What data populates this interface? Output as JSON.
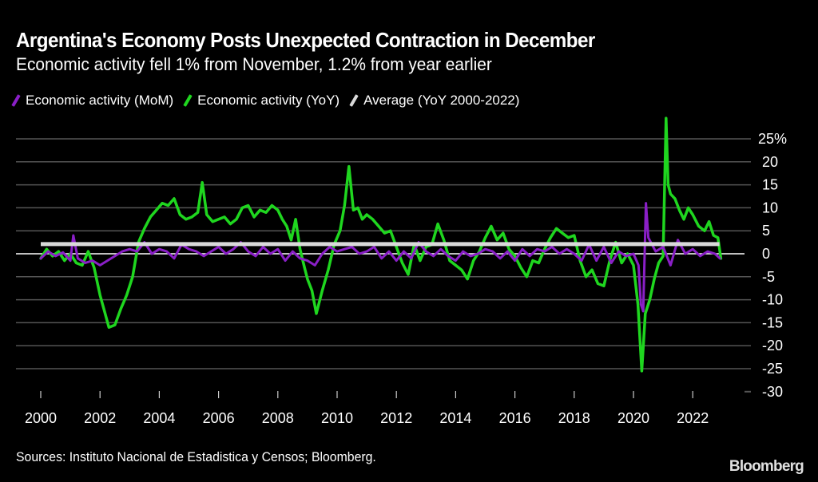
{
  "chart_data": {
    "type": "line",
    "title": "Argentina's Economy Posts Unexpected Contraction in December",
    "subtitle": "Economic activity fell 1% from November, 1.2% from year earlier",
    "xlabel": "",
    "ylabel": "",
    "xlim": [
      2000,
      2023
    ],
    "ylim": [
      -30,
      25
    ],
    "y_ticks": [
      25,
      20,
      15,
      10,
      5,
      0,
      -5,
      -10,
      -15,
      -20,
      -25,
      -30
    ],
    "y_tick_labels": [
      "25%",
      "20",
      "15",
      "10",
      "5",
      "0",
      "-5",
      "-10",
      "-15",
      "-20",
      "-25",
      "-30"
    ],
    "x_ticks": [
      2000,
      2002,
      2004,
      2006,
      2008,
      2010,
      2012,
      2014,
      2016,
      2018,
      2020,
      2022
    ],
    "x_tick_labels": [
      "2000",
      "2002",
      "2004",
      "2006",
      "2008",
      "2010",
      "2012",
      "2014",
      "2016",
      "2018",
      "2020",
      "2022"
    ],
    "grid": true,
    "y_axis_position": "right",
    "legend_position": "top-left",
    "series": [
      {
        "name": "Economic activity (MoM)",
        "color": "#8a1fc7",
        "x": [
          2000.0,
          2000.25,
          2000.5,
          2000.75,
          2001.0,
          2001.1,
          2001.25,
          2001.5,
          2001.75,
          2002.0,
          2002.25,
          2002.5,
          2002.75,
          2003.0,
          2003.25,
          2003.5,
          2003.75,
          2004.0,
          2004.25,
          2004.5,
          2004.75,
          2005.0,
          2005.25,
          2005.5,
          2005.75,
          2006.0,
          2006.25,
          2006.5,
          2006.75,
          2007.0,
          2007.25,
          2007.5,
          2007.75,
          2008.0,
          2008.25,
          2008.5,
          2008.75,
          2009.0,
          2009.25,
          2009.5,
          2009.75,
          2010.0,
          2010.25,
          2010.5,
          2010.75,
          2011.0,
          2011.25,
          2011.5,
          2011.75,
          2012.0,
          2012.25,
          2012.5,
          2012.75,
          2013.0,
          2013.25,
          2013.5,
          2013.75,
          2014.0,
          2014.25,
          2014.5,
          2014.75,
          2015.0,
          2015.25,
          2015.5,
          2015.75,
          2016.0,
          2016.25,
          2016.5,
          2016.75,
          2017.0,
          2017.25,
          2017.5,
          2017.75,
          2018.0,
          2018.25,
          2018.5,
          2018.75,
          2019.0,
          2019.25,
          2019.5,
          2019.75,
          2020.0,
          2020.17,
          2020.25,
          2020.33,
          2020.42,
          2020.5,
          2020.75,
          2021.0,
          2021.25,
          2021.5,
          2021.75,
          2022.0,
          2022.25,
          2022.5,
          2022.75,
          2022.92
        ],
        "values": [
          -1.0,
          0.5,
          -0.5,
          0.3,
          -1.5,
          4.0,
          -1.0,
          -2.0,
          -1.5,
          -2.5,
          -1.5,
          -0.5,
          0.5,
          1.0,
          0.5,
          2.5,
          0.0,
          1.0,
          0.5,
          -1.0,
          2.0,
          1.0,
          0.5,
          -0.5,
          0.5,
          1.5,
          0.0,
          1.0,
          2.5,
          0.5,
          -0.5,
          1.5,
          0.0,
          1.0,
          -1.5,
          0.5,
          -1.0,
          -1.5,
          -2.5,
          0.0,
          1.5,
          0.5,
          1.0,
          1.5,
          0.0,
          0.5,
          1.5,
          -1.0,
          0.5,
          -1.5,
          0.5,
          -1.0,
          2.5,
          0.5,
          -0.5,
          1.0,
          -0.5,
          -1.5,
          0.5,
          -0.5,
          0.0,
          1.0,
          0.5,
          -1.0,
          0.5,
          -1.5,
          1.0,
          -0.5,
          1.0,
          0.5,
          1.5,
          0.0,
          1.0,
          0.0,
          -1.5,
          2.0,
          -1.5,
          1.5,
          -2.0,
          0.5,
          -0.5,
          0.0,
          -2.5,
          -11.0,
          -12.5,
          11.0,
          3.5,
          0.5,
          1.5,
          -2.5,
          3.0,
          0.0,
          1.0,
          -0.5,
          0.5,
          0.0,
          -1.0
        ]
      },
      {
        "name": "Economic activity (YoY)",
        "color": "#1fd61f",
        "x": [
          2000.0,
          2000.2,
          2000.4,
          2000.6,
          2000.8,
          2001.0,
          2001.2,
          2001.4,
          2001.6,
          2001.8,
          2002.0,
          2002.15,
          2002.3,
          2002.5,
          2002.7,
          2002.9,
          2003.1,
          2003.3,
          2003.5,
          2003.7,
          2003.9,
          2004.1,
          2004.3,
          2004.5,
          2004.7,
          2004.9,
          2005.1,
          2005.3,
          2005.45,
          2005.6,
          2005.8,
          2006.0,
          2006.2,
          2006.4,
          2006.6,
          2006.8,
          2007.0,
          2007.2,
          2007.4,
          2007.6,
          2007.8,
          2008.0,
          2008.15,
          2008.3,
          2008.45,
          2008.6,
          2008.75,
          2008.9,
          2009.0,
          2009.15,
          2009.3,
          2009.5,
          2009.7,
          2009.9,
          2010.1,
          2010.25,
          2010.4,
          2010.55,
          2010.7,
          2010.85,
          2011.0,
          2011.2,
          2011.4,
          2011.6,
          2011.8,
          2012.0,
          2012.2,
          2012.4,
          2012.6,
          2012.8,
          2013.0,
          2013.2,
          2013.4,
          2013.6,
          2013.8,
          2014.0,
          2014.2,
          2014.4,
          2014.6,
          2014.8,
          2015.0,
          2015.2,
          2015.4,
          2015.6,
          2015.8,
          2016.0,
          2016.2,
          2016.4,
          2016.6,
          2016.8,
          2017.0,
          2017.2,
          2017.4,
          2017.6,
          2017.8,
          2018.0,
          2018.2,
          2018.4,
          2018.6,
          2018.8,
          2019.0,
          2019.2,
          2019.4,
          2019.6,
          2019.8,
          2020.0,
          2020.15,
          2020.28,
          2020.4,
          2020.55,
          2020.7,
          2020.85,
          2021.0,
          2021.1,
          2021.17,
          2021.25,
          2021.4,
          2021.55,
          2021.7,
          2021.85,
          2022.0,
          2022.2,
          2022.4,
          2022.55,
          2022.7,
          2022.85,
          2022.95
        ],
        "values": [
          -1.0,
          1.0,
          -0.5,
          0.5,
          -1.5,
          0.0,
          -2.0,
          -2.5,
          0.5,
          -3.0,
          -9.0,
          -12.5,
          -16.0,
          -15.5,
          -12.0,
          -9.0,
          -5.0,
          2.5,
          5.5,
          8.0,
          9.5,
          11.0,
          10.5,
          12.0,
          8.5,
          7.5,
          8.0,
          9.0,
          15.5,
          8.5,
          7.0,
          7.5,
          8.0,
          6.5,
          7.5,
          10.0,
          10.5,
          8.0,
          9.5,
          9.0,
          10.5,
          9.5,
          7.5,
          6.0,
          3.0,
          7.5,
          1.0,
          -3.0,
          -5.5,
          -8.0,
          -13.0,
          -8.0,
          -3.5,
          2.0,
          5.0,
          10.5,
          19.0,
          9.5,
          10.0,
          7.5,
          8.5,
          7.5,
          6.0,
          4.5,
          5.0,
          1.5,
          -2.0,
          -4.5,
          2.0,
          -1.5,
          1.5,
          2.0,
          6.5,
          3.0,
          -1.5,
          -2.5,
          -3.5,
          -5.5,
          -1.5,
          0.5,
          3.5,
          6.0,
          3.0,
          4.5,
          1.0,
          -0.5,
          -3.0,
          -5.0,
          -1.5,
          -2.0,
          1.0,
          3.5,
          5.5,
          4.5,
          3.5,
          4.0,
          -1.5,
          -5.0,
          -3.5,
          -6.5,
          -7.0,
          -1.5,
          2.5,
          -2.0,
          0.0,
          -2.5,
          -11.0,
          -25.5,
          -13.0,
          -10.0,
          -5.5,
          -2.0,
          -0.5,
          29.5,
          15.0,
          13.0,
          12.0,
          9.5,
          7.5,
          10.0,
          8.5,
          6.0,
          5.0,
          7.0,
          4.0,
          3.5,
          -1.0
        ]
      },
      {
        "name": "Average (YoY 2000-2022)",
        "color": "#d9d9d9",
        "x": [
          2000.0,
          2022.9
        ],
        "values": [
          2.1,
          2.1
        ]
      }
    ]
  },
  "source_text": "Sources: Instituto Nacional de Estadistica y Censos; Bloomberg.",
  "brand": "Bloomberg"
}
